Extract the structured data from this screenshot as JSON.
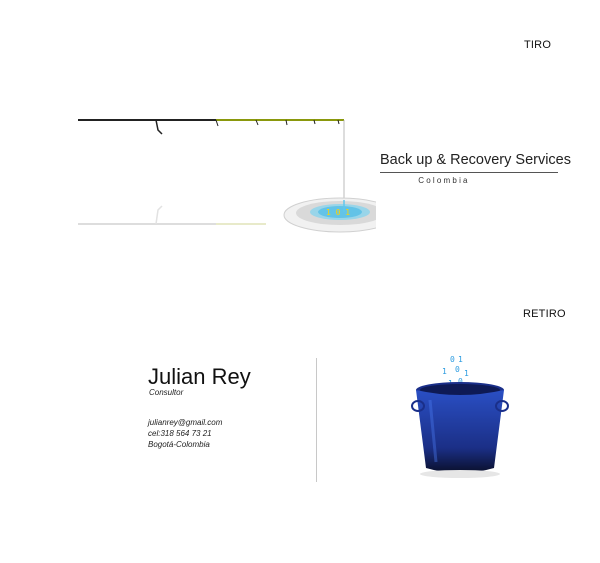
{
  "front": {
    "label": "TIRO",
    "brand_title": "Back up & Recovery Services",
    "brand_subtitle": "Colombia",
    "illustration": "fishing-rod-over-data-disc-icon"
  },
  "back": {
    "label": "RETIRO",
    "name": "Julian Rey",
    "role": "Consultor",
    "email": "julianrey@gmail.com",
    "phone": "cel:318 564 73 21",
    "city": "Bogotá-Colombia",
    "illustration": "blue-bucket-with-binary-icon"
  },
  "colors": {
    "bucket": "#1d3fa8",
    "rod": "#222222",
    "rod_accent": "#c8e000",
    "disc_glow": "#3fb7e6"
  }
}
